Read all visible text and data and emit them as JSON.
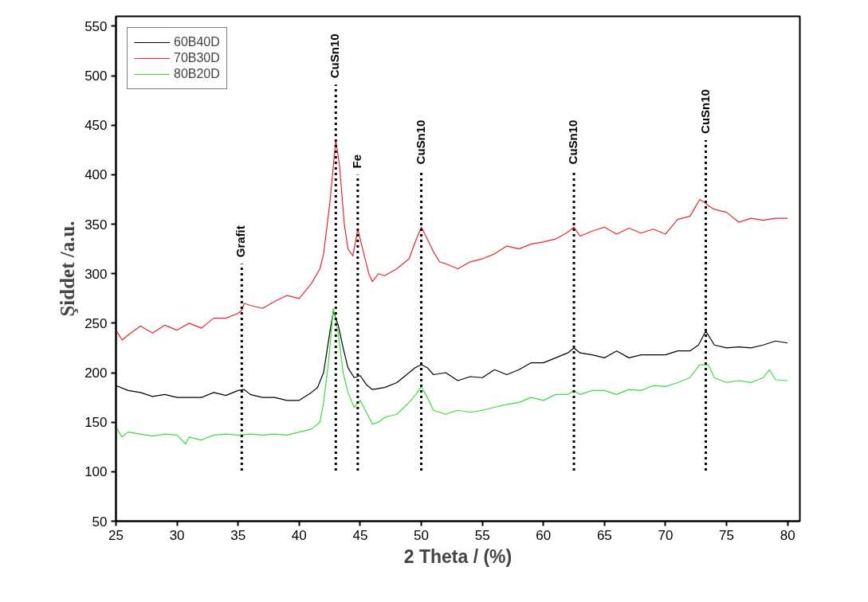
{
  "chart_data": {
    "type": "line",
    "xlabel": "2 Theta / (%)",
    "ylabel": "Şiddet /a.u.",
    "xlim": [
      25,
      81
    ],
    "ylim": [
      50,
      560
    ],
    "xticks": [
      25,
      30,
      35,
      40,
      45,
      50,
      55,
      60,
      65,
      70,
      75,
      80
    ],
    "yticks": [
      50,
      100,
      150,
      200,
      250,
      300,
      350,
      400,
      450,
      500,
      550
    ],
    "grid": false,
    "legend": "top left",
    "marker": "none",
    "line_style": "solid",
    "series": [
      {
        "name": "60B40D",
        "color": "#000000",
        "x": [
          25,
          26,
          27,
          28,
          29,
          30,
          31,
          32,
          33,
          34,
          35,
          35.5,
          36,
          37,
          38,
          39,
          40,
          41,
          41.5,
          42,
          42.5,
          42.8,
          43.2,
          43.6,
          44,
          44.5,
          45,
          45.5,
          46,
          47,
          48,
          48.5,
          49,
          49.5,
          50,
          50.5,
          51,
          52,
          53,
          54,
          55,
          56,
          57,
          58,
          59,
          60,
          61,
          62,
          62.5,
          63,
          64,
          65,
          66,
          67,
          68,
          69,
          70,
          71,
          72,
          72.7,
          73.3,
          73.8,
          74,
          75,
          76,
          77,
          78,
          79,
          80
        ],
        "values": [
          187,
          182,
          180,
          176,
          178,
          175,
          175,
          175,
          180,
          177,
          182,
          183,
          178,
          175,
          175,
          172,
          172,
          180,
          185,
          200,
          240,
          262,
          248,
          225,
          205,
          195,
          197,
          188,
          183,
          185,
          190,
          195,
          200,
          205,
          208,
          205,
          198,
          200,
          192,
          196,
          195,
          203,
          198,
          203,
          210,
          210,
          215,
          220,
          225,
          220,
          218,
          215,
          222,
          215,
          218,
          218,
          218,
          222,
          222,
          228,
          242,
          232,
          228,
          225,
          226,
          225,
          228,
          232,
          230
        ]
      },
      {
        "name": "70B30D",
        "color": "#e8262b",
        "x": [
          25,
          25.5,
          26,
          27,
          28,
          29,
          30,
          31,
          32,
          33,
          34,
          35,
          35.3,
          35.5,
          36,
          37,
          38,
          39,
          40,
          41,
          41.7,
          42,
          42.5,
          43,
          43.3,
          43.7,
          44,
          44.4,
          44.8,
          45.2,
          45.7,
          46,
          46.5,
          47,
          48,
          48.5,
          49,
          49.5,
          50,
          50.5,
          51,
          51.5,
          52,
          53,
          54,
          55,
          56,
          57,
          58,
          59,
          60,
          61,
          62,
          62.5,
          63,
          64,
          65,
          66,
          67,
          68,
          69,
          70,
          71,
          72,
          72.8,
          73.2,
          73.6,
          74,
          75,
          76,
          77,
          78,
          79,
          80
        ],
        "values": [
          243,
          233,
          238,
          247,
          240,
          248,
          243,
          250,
          245,
          255,
          255,
          260,
          263,
          270,
          268,
          265,
          272,
          278,
          275,
          290,
          305,
          320,
          370,
          435,
          410,
          350,
          325,
          318,
          345,
          325,
          300,
          292,
          300,
          298,
          305,
          310,
          315,
          332,
          347,
          335,
          322,
          312,
          310,
          305,
          312,
          315,
          320,
          328,
          325,
          330,
          332,
          335,
          342,
          347,
          338,
          343,
          347,
          340,
          346,
          341,
          345,
          340,
          355,
          358,
          375,
          372,
          368,
          365,
          362,
          352,
          356,
          354,
          356,
          356
        ]
      },
      {
        "name": "80B20D",
        "color": "#3ddc3d",
        "x": [
          25,
          25.5,
          26,
          27,
          28,
          29,
          30,
          30.7,
          31,
          32,
          33,
          34,
          35,
          36,
          37,
          38,
          39,
          40,
          41,
          41.7,
          42,
          42.4,
          42.8,
          43.2,
          43.6,
          44,
          44.5,
          45,
          45.5,
          46,
          46.5,
          47,
          48,
          49,
          49.5,
          50,
          50.5,
          51,
          52,
          53,
          54,
          55,
          56,
          57,
          58,
          59,
          60,
          61,
          62,
          62.5,
          63,
          64,
          65,
          66,
          67,
          68,
          69,
          70,
          71,
          72,
          72.8,
          73.5,
          74,
          75,
          76,
          77,
          78,
          78.5,
          79,
          80
        ],
        "values": [
          145,
          135,
          140,
          138,
          136,
          138,
          137,
          128,
          135,
          132,
          137,
          138,
          137,
          138,
          137,
          138,
          137,
          140,
          143,
          150,
          170,
          210,
          265,
          240,
          200,
          180,
          165,
          172,
          160,
          148,
          150,
          155,
          158,
          170,
          177,
          186,
          175,
          162,
          158,
          162,
          160,
          162,
          165,
          168,
          170,
          175,
          172,
          178,
          178,
          182,
          178,
          182,
          182,
          178,
          183,
          182,
          187,
          186,
          190,
          195,
          208,
          208,
          195,
          190,
          192,
          190,
          195,
          203,
          193,
          192
        ]
      }
    ],
    "ref_lines": [
      {
        "axis": "x",
        "value": 35.3,
        "line_style": "dotted",
        "color": "#000000"
      },
      {
        "axis": "x",
        "value": 43,
        "line_style": "dotted",
        "color": "#000000"
      },
      {
        "axis": "x",
        "value": 44.8,
        "line_style": "dotted",
        "color": "#000000"
      },
      {
        "axis": "x",
        "value": 50,
        "line_style": "dotted",
        "color": "#000000"
      },
      {
        "axis": "x",
        "value": 62.5,
        "line_style": "dotted",
        "color": "#000000"
      },
      {
        "axis": "x",
        "value": 73.3,
        "line_style": "dotted",
        "color": "#000000"
      }
    ],
    "annotations": [
      {
        "text": "Grafit",
        "x": 35.3,
        "y": 310
      },
      {
        "text": "CuSn10",
        "x": 43,
        "y": 491
      },
      {
        "text": "Fe",
        "x": 44.8,
        "y": 400
      },
      {
        "text": "CuSn10",
        "x": 50,
        "y": 404
      },
      {
        "text": "CuSn10",
        "x": 62.5,
        "y": 404
      },
      {
        "text": "CuSn10",
        "x": 73.3,
        "y": 435
      }
    ]
  }
}
